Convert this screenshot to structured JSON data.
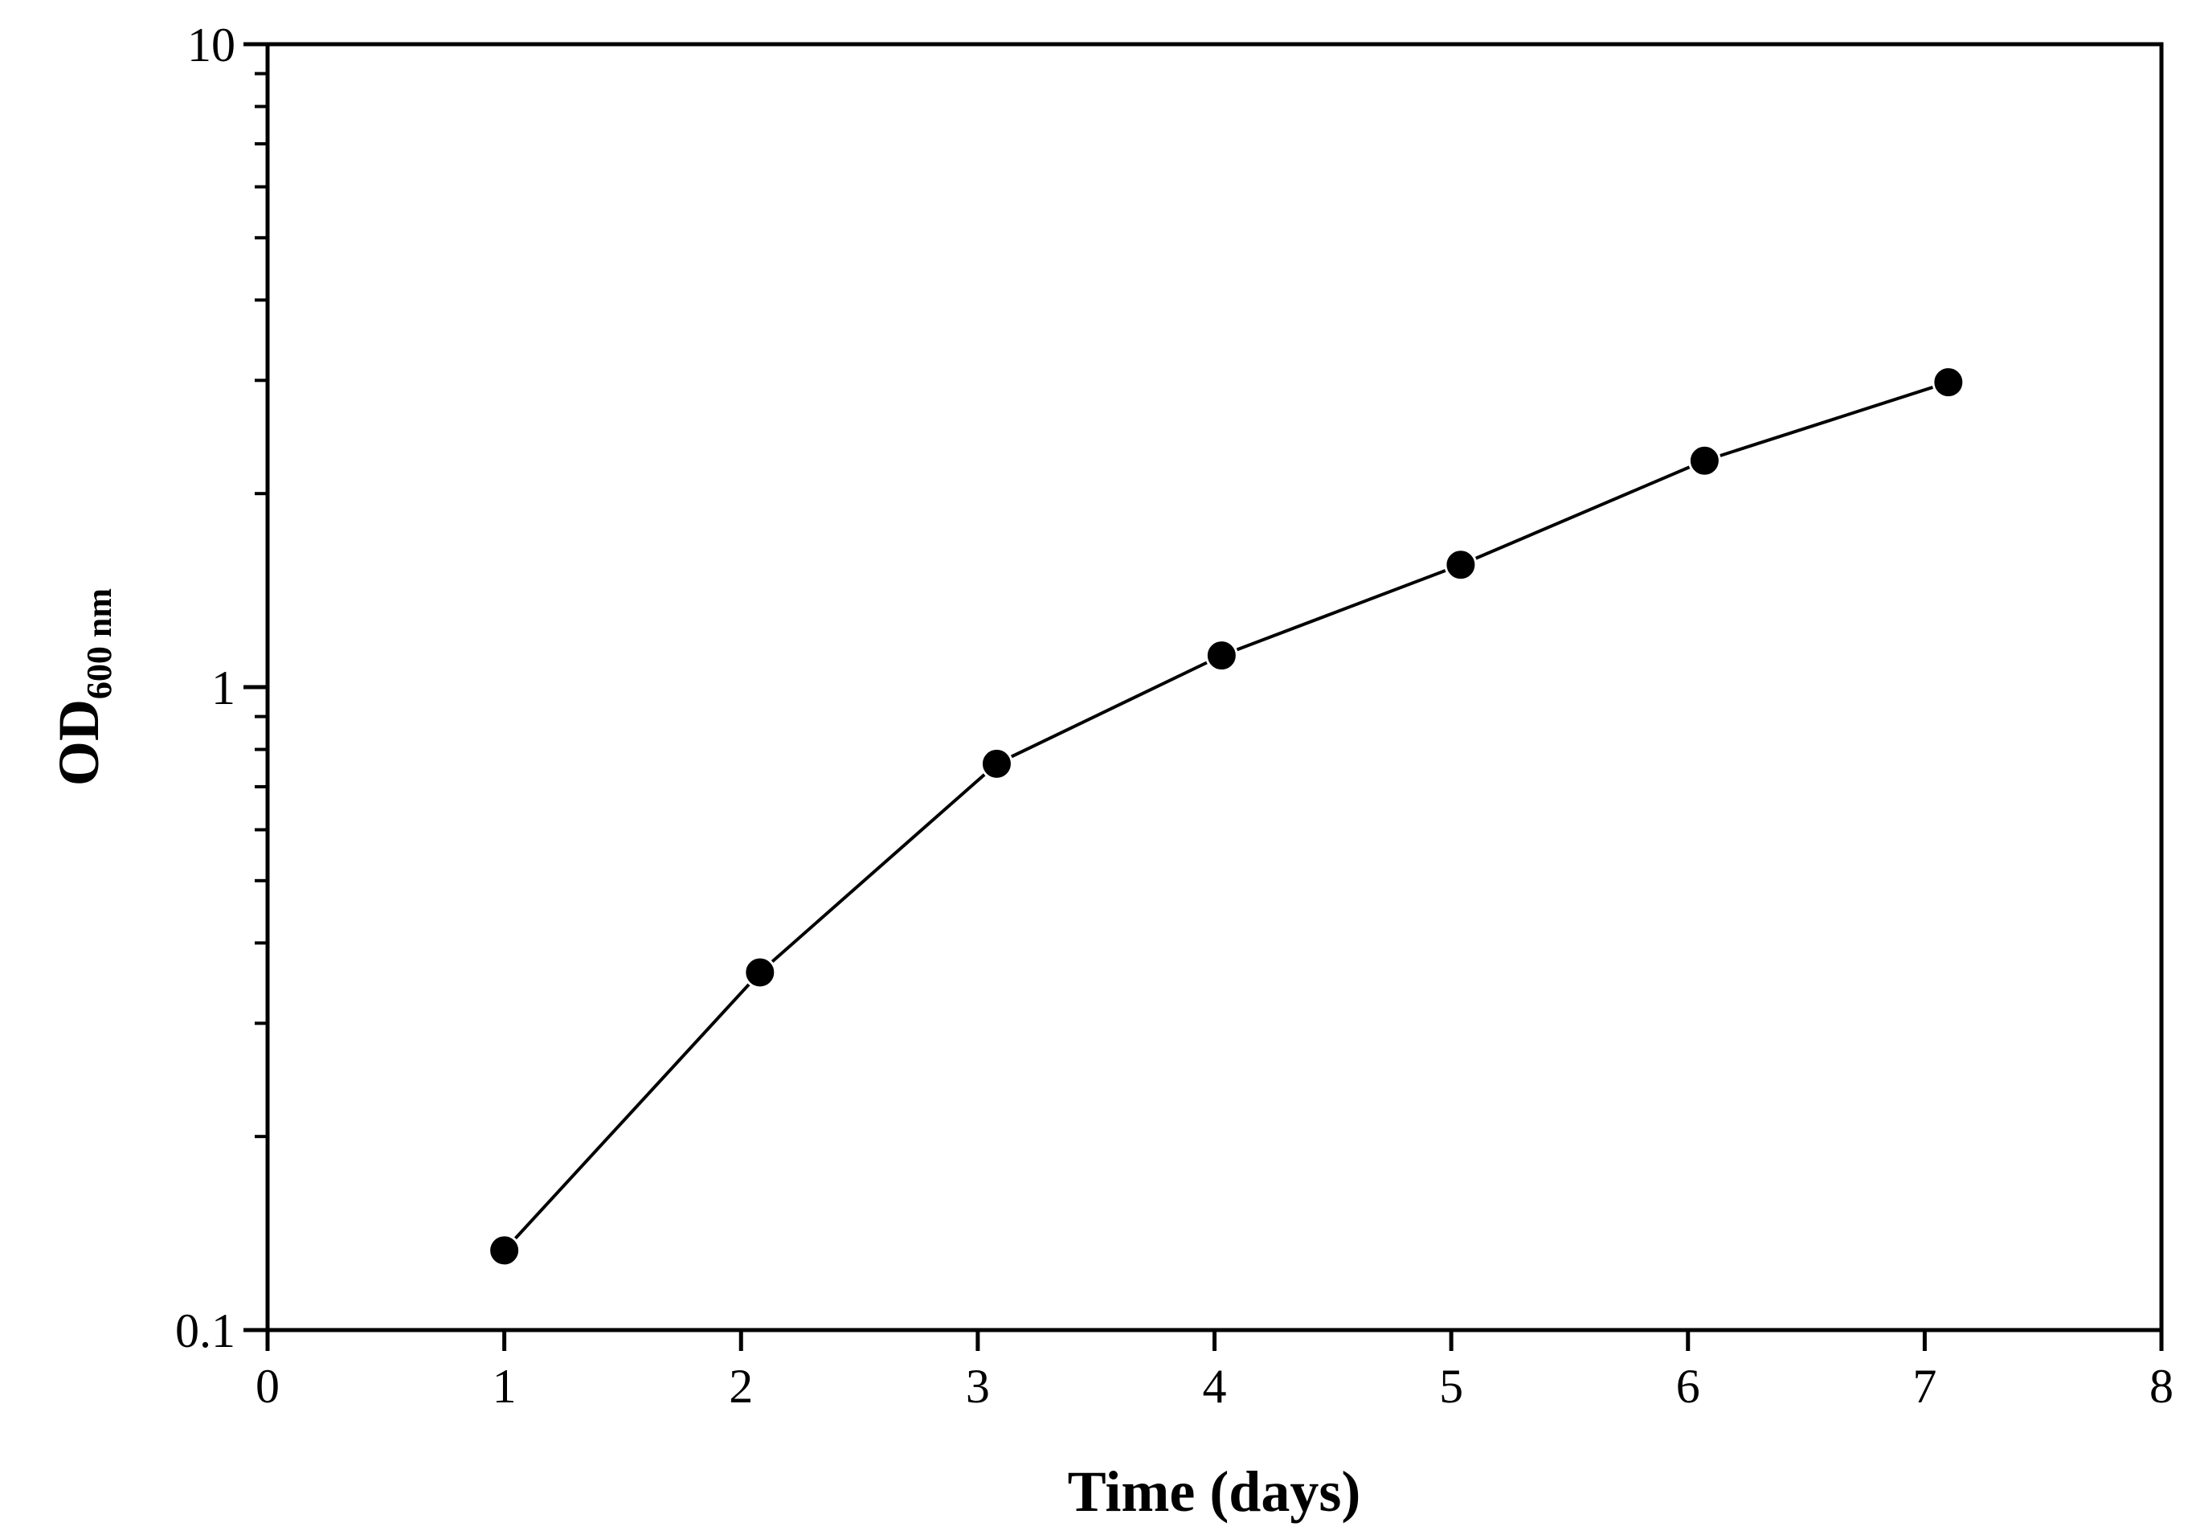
{
  "chart_data": {
    "type": "line",
    "title": "",
    "xlabel": "Time (days)",
    "ylabel": "OD",
    "ylabel_subscript": "600 nm",
    "xlim": [
      0,
      8
    ],
    "ylim": [
      0.1,
      10
    ],
    "yscale": "log",
    "grid": false,
    "xticks": [
      0,
      1,
      2,
      3,
      4,
      5,
      6,
      7,
      8
    ],
    "xtick_labels": [
      "0",
      "1",
      "2",
      "3",
      "4",
      "5",
      "6",
      "7",
      "8"
    ],
    "yticks": [
      0.1,
      1,
      10
    ],
    "ytick_labels": [
      "0.1",
      "1",
      "10"
    ],
    "series": [
      {
        "x": [
          1.0,
          2.08,
          3.08,
          4.03,
          5.04,
          6.07,
          7.1
        ],
        "y": [
          0.133,
          0.36,
          0.76,
          1.12,
          1.55,
          2.25,
          2.98
        ],
        "color": "#000000",
        "marker": "circle"
      }
    ]
  }
}
